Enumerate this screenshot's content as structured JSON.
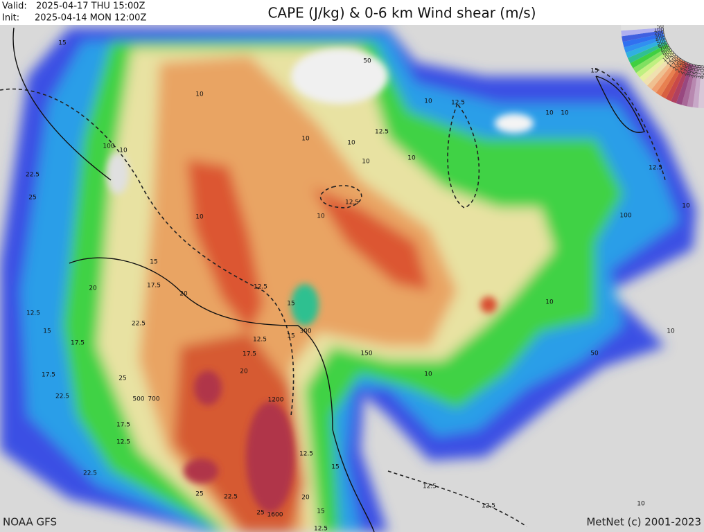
{
  "header": {
    "valid_label": "Valid:",
    "valid_time": "2025-04-17 THU  15:00Z",
    "init_label": "Init:",
    "init_time": "2025-04-14 MON 12:00Z",
    "title": "CAPE (J/kg) & 0-6 km Wind shear (m/s)"
  },
  "scale_labels": [
    "4000",
    "3750",
    "3500",
    "3250",
    "3000",
    "2750",
    "2500",
    "2250",
    "2000",
    "1750",
    "1500",
    "1250",
    "1000",
    "900",
    "800",
    "700",
    "600",
    "500",
    "400",
    "300",
    "200",
    "100",
    "50"
  ],
  "contour_labels": [
    "15",
    "10",
    "10",
    "100",
    "10",
    "10",
    "12.5",
    "10",
    "12.5",
    "10",
    "10",
    "10",
    "10",
    "15",
    "12.5",
    "10",
    "100",
    "10",
    "10",
    "12.5",
    "15",
    "17.5",
    "20",
    "12.5",
    "15",
    "12.5",
    "15",
    "20",
    "300",
    "12.5",
    "15",
    "17.5",
    "22.5",
    "10",
    "10",
    "150",
    "50",
    "17.5",
    "20",
    "25",
    "10",
    "17.5",
    "22.5",
    "500",
    "700",
    "1200",
    "17.5",
    "12.5",
    "12.5",
    "22.5",
    "15",
    "12.5",
    "25",
    "22.5",
    "20",
    "12.5",
    "10",
    "25",
    "1600",
    "15",
    "12.5",
    "50",
    "22.5",
    "25"
  ],
  "footer": {
    "source": "NOAA GFS",
    "credit": "MetNet (c) 2001-2023"
  }
}
